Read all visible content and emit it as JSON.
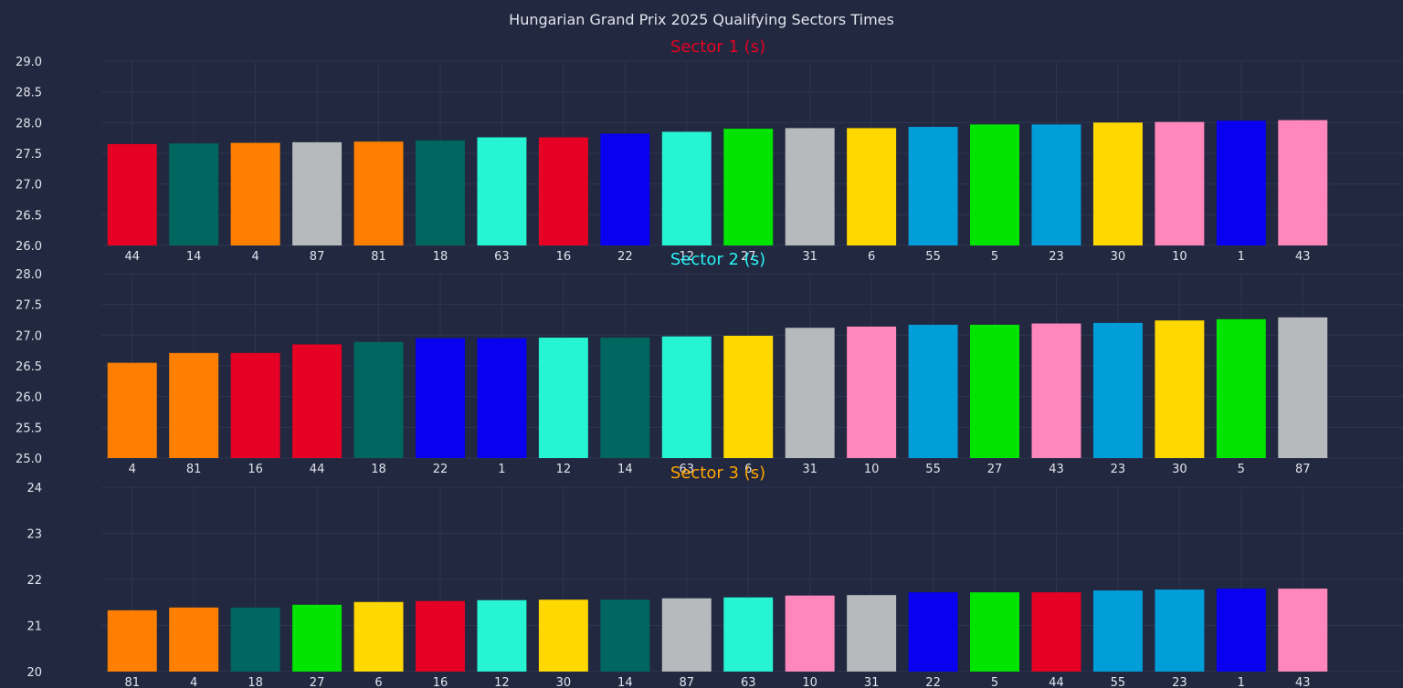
{
  "chart_data": {
    "type": "bar",
    "title": "Hungarian Grand Prix 2025 Qualifying Sectors Times",
    "grid": true,
    "background": "#22283f",
    "grid_color": "#2e3550",
    "text_color": "#e1e4ee",
    "team_colors": {
      "1": "#0800ee",
      "22": "#0800ee",
      "4": "#ff8000",
      "81": "#ff8000",
      "16": "#e60023",
      "44": "#e60023",
      "63": "#27f4d2",
      "12": "#27f4d2",
      "14": "#006660",
      "18": "#006660",
      "6": "#ffd800",
      "30": "#ffd800",
      "23": "#009ed9",
      "55": "#009ed9",
      "27": "#00e400",
      "5": "#00e400",
      "10": "#ff87bc",
      "43": "#ff87bc",
      "31": "#b6babd",
      "87": "#b6babd"
    },
    "subplots": [
      {
        "title": "Sector 1 (s)",
        "title_color": "#e60023",
        "ylim": [
          26.0,
          29.0
        ],
        "yticks": [
          "26.0",
          "26.5",
          "27.0",
          "27.5",
          "28.0",
          "28.5",
          "29.0"
        ],
        "categories": [
          "44",
          "14",
          "4",
          "87",
          "81",
          "18",
          "63",
          "16",
          "22",
          "12",
          "27",
          "31",
          "6",
          "55",
          "5",
          "23",
          "30",
          "10",
          "1",
          "43"
        ],
        "values": [
          27.65,
          27.66,
          27.67,
          27.68,
          27.69,
          27.71,
          27.76,
          27.76,
          27.82,
          27.85,
          27.9,
          27.91,
          27.91,
          27.93,
          27.97,
          27.97,
          28.0,
          28.01,
          28.03,
          28.04
        ]
      },
      {
        "title": "Sector 2 (s)",
        "title_color": "#27f4f4",
        "ylim": [
          25.0,
          28.0
        ],
        "yticks": [
          "25.0",
          "25.5",
          "26.0",
          "26.5",
          "27.0",
          "27.5",
          "28.0"
        ],
        "categories": [
          "4",
          "81",
          "16",
          "44",
          "18",
          "22",
          "1",
          "12",
          "14",
          "63",
          "6",
          "31",
          "10",
          "55",
          "27",
          "43",
          "23",
          "30",
          "5",
          "87"
        ],
        "values": [
          26.55,
          26.71,
          26.71,
          26.85,
          26.89,
          26.95,
          26.95,
          26.96,
          26.96,
          26.98,
          26.99,
          27.12,
          27.14,
          27.17,
          27.17,
          27.19,
          27.2,
          27.24,
          27.26,
          27.29
        ]
      },
      {
        "title": "Sector 3 (s)",
        "title_color": "#ffa500",
        "ylim": [
          20,
          24
        ],
        "yticks": [
          "20",
          "21",
          "22",
          "23",
          "24"
        ],
        "categories": [
          "81",
          "4",
          "18",
          "27",
          "6",
          "16",
          "12",
          "30",
          "14",
          "87",
          "63",
          "10",
          "31",
          "22",
          "5",
          "44",
          "55",
          "23",
          "1",
          "43"
        ],
        "values": [
          21.33,
          21.39,
          21.39,
          21.45,
          21.51,
          21.53,
          21.55,
          21.56,
          21.56,
          21.59,
          21.61,
          21.65,
          21.66,
          21.72,
          21.72,
          21.72,
          21.76,
          21.78,
          21.8,
          21.8
        ]
      }
    ]
  }
}
